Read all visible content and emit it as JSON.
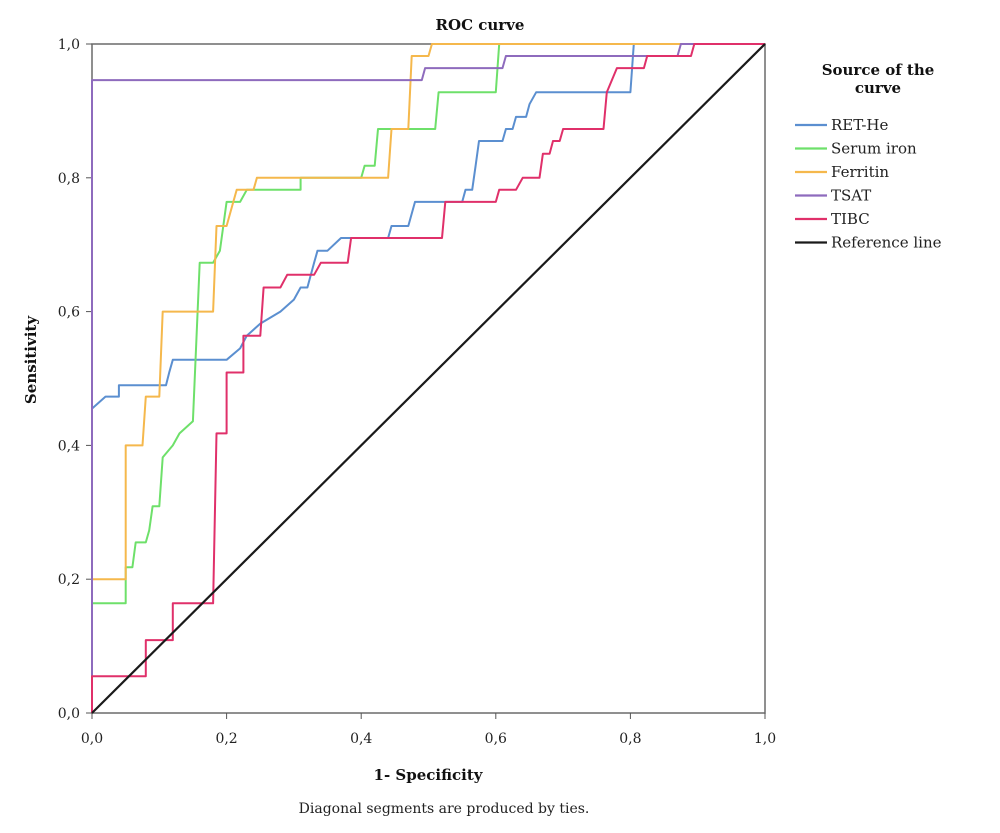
{
  "chart_data": {
    "type": "line",
    "title": "ROC curve",
    "xlabel": "1- Specificity",
    "ylabel": "Sensitivity",
    "xlim": [
      0,
      1
    ],
    "ylim": [
      0,
      1
    ],
    "x_ticks": [
      "0,0",
      "0,2",
      "0,4",
      "0,6",
      "0,8",
      "1,0"
    ],
    "y_ticks": [
      "0,0",
      "0,2",
      "0,4",
      "0,6",
      "0,8",
      "1,0"
    ],
    "x_tick_values": [
      0,
      0.2,
      0.4,
      0.6,
      0.8,
      1.0
    ],
    "y_tick_values": [
      0,
      0.2,
      0.4,
      0.6,
      0.8,
      1.0
    ],
    "legend_title": "Source of the curve",
    "legend_position": "right",
    "grid": false,
    "footnote": "Diagonal segments are produced by ties.",
    "series": [
      {
        "name": "RET-He",
        "color": "#5b8fd0",
        "points": [
          [
            0,
            0
          ],
          [
            0,
            0.455
          ],
          [
            0.02,
            0.473
          ],
          [
            0.04,
            0.473
          ],
          [
            0.04,
            0.49
          ],
          [
            0.11,
            0.49
          ],
          [
            0.115,
            0.51
          ],
          [
            0.12,
            0.528
          ],
          [
            0.2,
            0.528
          ],
          [
            0.22,
            0.545
          ],
          [
            0.23,
            0.564
          ],
          [
            0.25,
            0.582
          ],
          [
            0.28,
            0.6
          ],
          [
            0.3,
            0.618
          ],
          [
            0.31,
            0.636
          ],
          [
            0.32,
            0.636
          ],
          [
            0.33,
            0.673
          ],
          [
            0.335,
            0.691
          ],
          [
            0.35,
            0.691
          ],
          [
            0.37,
            0.71
          ],
          [
            0.44,
            0.71
          ],
          [
            0.445,
            0.728
          ],
          [
            0.47,
            0.728
          ],
          [
            0.48,
            0.764
          ],
          [
            0.55,
            0.764
          ],
          [
            0.555,
            0.782
          ],
          [
            0.565,
            0.782
          ],
          [
            0.57,
            0.818
          ],
          [
            0.575,
            0.855
          ],
          [
            0.61,
            0.855
          ],
          [
            0.615,
            0.873
          ],
          [
            0.625,
            0.873
          ],
          [
            0.63,
            0.891
          ],
          [
            0.645,
            0.891
          ],
          [
            0.65,
            0.91
          ],
          [
            0.66,
            0.928
          ],
          [
            0.8,
            0.928
          ],
          [
            0.805,
            1.0
          ],
          [
            1.0,
            1.0
          ]
        ]
      },
      {
        "name": "Serum iron",
        "color": "#6ee06a",
        "points": [
          [
            0,
            0
          ],
          [
            0,
            0.164
          ],
          [
            0.05,
            0.164
          ],
          [
            0.05,
            0.218
          ],
          [
            0.06,
            0.218
          ],
          [
            0.065,
            0.255
          ],
          [
            0.08,
            0.255
          ],
          [
            0.085,
            0.273
          ],
          [
            0.09,
            0.309
          ],
          [
            0.1,
            0.309
          ],
          [
            0.105,
            0.382
          ],
          [
            0.12,
            0.4
          ],
          [
            0.13,
            0.418
          ],
          [
            0.15,
            0.436
          ],
          [
            0.16,
            0.673
          ],
          [
            0.18,
            0.673
          ],
          [
            0.19,
            0.691
          ],
          [
            0.2,
            0.764
          ],
          [
            0.22,
            0.764
          ],
          [
            0.23,
            0.782
          ],
          [
            0.31,
            0.782
          ],
          [
            0.31,
            0.8
          ],
          [
            0.4,
            0.8
          ],
          [
            0.405,
            0.818
          ],
          [
            0.42,
            0.818
          ],
          [
            0.425,
            0.873
          ],
          [
            0.47,
            0.873
          ],
          [
            0.48,
            0.873
          ],
          [
            0.51,
            0.873
          ],
          [
            0.515,
            0.928
          ],
          [
            0.6,
            0.928
          ],
          [
            0.605,
            1.0
          ],
          [
            1.0,
            1.0
          ]
        ]
      },
      {
        "name": "Ferritin",
        "color": "#f5b84c",
        "points": [
          [
            0,
            0
          ],
          [
            0,
            0.2
          ],
          [
            0.05,
            0.2
          ],
          [
            0.05,
            0.4
          ],
          [
            0.075,
            0.4
          ],
          [
            0.08,
            0.473
          ],
          [
            0.1,
            0.473
          ],
          [
            0.105,
            0.6
          ],
          [
            0.18,
            0.6
          ],
          [
            0.185,
            0.728
          ],
          [
            0.2,
            0.728
          ],
          [
            0.21,
            0.764
          ],
          [
            0.215,
            0.782
          ],
          [
            0.24,
            0.782
          ],
          [
            0.245,
            0.8
          ],
          [
            0.44,
            0.8
          ],
          [
            0.445,
            0.873
          ],
          [
            0.47,
            0.873
          ],
          [
            0.475,
            0.982
          ],
          [
            0.5,
            0.982
          ],
          [
            0.505,
            1.0
          ],
          [
            1.0,
            1.0
          ]
        ]
      },
      {
        "name": "TSAT",
        "color": "#8e6bbd",
        "points": [
          [
            0,
            0
          ],
          [
            0,
            0.946
          ],
          [
            0.49,
            0.946
          ],
          [
            0.495,
            0.964
          ],
          [
            0.61,
            0.964
          ],
          [
            0.615,
            0.982
          ],
          [
            0.87,
            0.982
          ],
          [
            0.875,
            1.0
          ],
          [
            1.0,
            1.0
          ]
        ]
      },
      {
        "name": "TIBC",
        "color": "#e0306a",
        "points": [
          [
            0,
            0
          ],
          [
            0,
            0.055
          ],
          [
            0.08,
            0.055
          ],
          [
            0.08,
            0.109
          ],
          [
            0.12,
            0.109
          ],
          [
            0.12,
            0.164
          ],
          [
            0.18,
            0.164
          ],
          [
            0.185,
            0.418
          ],
          [
            0.2,
            0.418
          ],
          [
            0.2,
            0.509
          ],
          [
            0.225,
            0.509
          ],
          [
            0.225,
            0.564
          ],
          [
            0.25,
            0.564
          ],
          [
            0.255,
            0.636
          ],
          [
            0.28,
            0.636
          ],
          [
            0.29,
            0.655
          ],
          [
            0.33,
            0.655
          ],
          [
            0.34,
            0.673
          ],
          [
            0.38,
            0.673
          ],
          [
            0.385,
            0.71
          ],
          [
            0.52,
            0.71
          ],
          [
            0.525,
            0.764
          ],
          [
            0.6,
            0.764
          ],
          [
            0.605,
            0.782
          ],
          [
            0.63,
            0.782
          ],
          [
            0.64,
            0.8
          ],
          [
            0.665,
            0.8
          ],
          [
            0.67,
            0.836
          ],
          [
            0.68,
            0.836
          ],
          [
            0.685,
            0.855
          ],
          [
            0.695,
            0.855
          ],
          [
            0.7,
            0.873
          ],
          [
            0.76,
            0.873
          ],
          [
            0.765,
            0.928
          ],
          [
            0.78,
            0.964
          ],
          [
            0.82,
            0.964
          ],
          [
            0.825,
            0.982
          ],
          [
            0.84,
            0.982
          ],
          [
            0.845,
            0.982
          ],
          [
            0.89,
            0.982
          ],
          [
            0.895,
            1.0
          ],
          [
            1.0,
            1.0
          ]
        ]
      },
      {
        "name": "Reference line",
        "color": "#1a1a1a",
        "points": [
          [
            0,
            0
          ],
          [
            1,
            1
          ]
        ]
      }
    ]
  }
}
